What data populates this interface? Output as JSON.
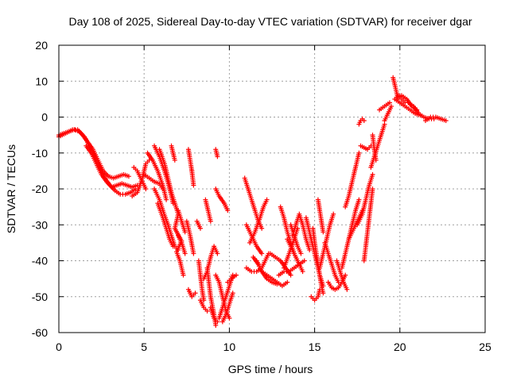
{
  "chart_data": {
    "type": "scatter",
    "title": "Day 108 of 2025, Sidereal Day-to-day VTEC variation (SDTVAR) for receiver dgar",
    "xlabel": "GPS time / hours",
    "ylabel": "SDTVAR / TECUs",
    "xlim": [
      0,
      25
    ],
    "ylim": [
      -60,
      20
    ],
    "xticks": [
      "0",
      "5",
      "10",
      "15",
      "20",
      "25"
    ],
    "yticks": [
      "-60",
      "-50",
      "-40",
      "-30",
      "-20",
      "-10",
      "0",
      "10",
      "20"
    ],
    "grid": true,
    "marker": "plus",
    "marker_color": "#ff0000",
    "tracks": [
      [
        [
          0.0,
          -5
        ],
        [
          0.3,
          -4.5
        ],
        [
          0.6,
          -4
        ],
        [
          0.9,
          -3.5
        ],
        [
          1.2,
          -4
        ],
        [
          1.5,
          -5.5
        ],
        [
          1.8,
          -8
        ],
        [
          2.1,
          -11
        ],
        [
          2.4,
          -14
        ],
        [
          2.7,
          -17
        ],
        [
          3.0,
          -19
        ],
        [
          3.3,
          -20.5
        ],
        [
          3.6,
          -21.5
        ],
        [
          3.9,
          -21.5
        ],
        [
          4.2,
          -21
        ],
        [
          4.5,
          -20
        ]
      ],
      [
        [
          0.0,
          -5.5
        ],
        [
          0.4,
          -4.5
        ],
        [
          0.8,
          -3.5
        ],
        [
          1.1,
          -3.5
        ],
        [
          1.4,
          -5
        ],
        [
          1.7,
          -7
        ],
        [
          2.0,
          -9
        ],
        [
          2.3,
          -12
        ],
        [
          2.6,
          -15
        ],
        [
          2.9,
          -16.5
        ],
        [
          3.2,
          -17
        ],
        [
          3.5,
          -16.5
        ],
        [
          3.8,
          -16
        ],
        [
          4.1,
          -16.5
        ]
      ],
      [
        [
          1.6,
          -8
        ],
        [
          1.9,
          -10
        ],
        [
          2.2,
          -13
        ],
        [
          2.5,
          -16
        ],
        [
          2.8,
          -18
        ],
        [
          3.1,
          -19.5
        ],
        [
          3.4,
          -19
        ],
        [
          3.7,
          -18.5
        ],
        [
          4.0,
          -19
        ],
        [
          4.3,
          -19.5
        ],
        [
          4.6,
          -19
        ]
      ],
      [
        [
          4.3,
          -22
        ],
        [
          4.6,
          -21
        ],
        [
          4.9,
          -17
        ],
        [
          5.1,
          -13
        ],
        [
          5.3,
          -12
        ]
      ],
      [
        [
          4.4,
          -14
        ],
        [
          4.6,
          -15
        ],
        [
          4.9,
          -18
        ],
        [
          5.1,
          -20
        ]
      ],
      [
        [
          5.0,
          -16
        ],
        [
          5.3,
          -17
        ],
        [
          5.6,
          -18
        ],
        [
          5.9,
          -18.5
        ],
        [
          6.1,
          -20
        ]
      ],
      [
        [
          5.2,
          -10
        ],
        [
          5.5,
          -12
        ],
        [
          5.8,
          -15
        ],
        [
          6.1,
          -19
        ],
        [
          6.3,
          -23
        ]
      ],
      [
        [
          5.6,
          -8
        ],
        [
          5.9,
          -11
        ],
        [
          6.2,
          -15
        ],
        [
          6.5,
          -20
        ],
        [
          6.7,
          -24
        ]
      ],
      [
        [
          5.6,
          -20
        ],
        [
          5.9,
          -23
        ],
        [
          6.1,
          -26
        ],
        [
          6.4,
          -30
        ],
        [
          6.6,
          -33
        ],
        [
          6.8,
          -36
        ],
        [
          7.0,
          -37
        ]
      ],
      [
        [
          5.9,
          -9
        ],
        [
          6.2,
          -13
        ],
        [
          6.4,
          -17
        ],
        [
          6.6,
          -21
        ],
        [
          6.8,
          -24
        ],
        [
          7.0,
          -27
        ]
      ],
      [
        [
          5.8,
          -24
        ],
        [
          6.1,
          -28
        ],
        [
          6.3,
          -31
        ],
        [
          6.5,
          -34
        ],
        [
          6.7,
          -36
        ]
      ],
      [
        [
          6.6,
          -8
        ],
        [
          6.7,
          -10
        ],
        [
          6.8,
          -12
        ]
      ],
      [
        [
          7.0,
          -26
        ],
        [
          7.2,
          -29
        ],
        [
          7.4,
          -32
        ]
      ],
      [
        [
          7.0,
          -33
        ],
        [
          7.2,
          -35
        ],
        [
          7.4,
          -38
        ]
      ],
      [
        [
          7.0,
          -27
        ],
        [
          6.8,
          -31
        ],
        [
          7.2,
          -34.5
        ],
        [
          6.9,
          -37.5
        ],
        [
          7.1,
          -40
        ],
        [
          7.3,
          -44
        ]
      ],
      [
        [
          7.5,
          -29
        ],
        [
          7.7,
          -33
        ],
        [
          7.9,
          -38
        ]
      ],
      [
        [
          7.6,
          -9
        ],
        [
          7.7,
          -12
        ],
        [
          7.8,
          -15
        ]
      ],
      [
        [
          7.8,
          -15
        ],
        [
          7.9,
          -19
        ]
      ],
      [
        [
          7.6,
          -48
        ],
        [
          7.8,
          -50
        ],
        [
          8.0,
          -49
        ]
      ],
      [
        [
          8.1,
          -29
        ],
        [
          8.3,
          -31
        ]
      ],
      [
        [
          8.2,
          -40
        ],
        [
          8.3,
          -44
        ],
        [
          8.4,
          -48
        ],
        [
          8.5,
          -51
        ]
      ],
      [
        [
          8.3,
          -51
        ],
        [
          8.5,
          -53
        ],
        [
          8.7,
          -54
        ]
      ],
      [
        [
          8.5,
          -45
        ],
        [
          8.7,
          -43
        ],
        [
          8.9,
          -39
        ],
        [
          9.1,
          -36
        ],
        [
          9.3,
          -38
        ]
      ],
      [
        [
          8.6,
          -23
        ],
        [
          8.7,
          -25
        ],
        [
          8.8,
          -27
        ],
        [
          8.9,
          -29
        ]
      ],
      [
        [
          8.7,
          -42
        ],
        [
          8.8,
          -46
        ],
        [
          8.9,
          -50
        ],
        [
          9.1,
          -55
        ],
        [
          9.2,
          -58
        ]
      ],
      [
        [
          8.9,
          -53
        ],
        [
          9.1,
          -56
        ],
        [
          9.3,
          -57
        ]
      ],
      [
        [
          9.2,
          -20
        ],
        [
          9.4,
          -22
        ],
        [
          9.7,
          -24
        ],
        [
          9.9,
          -26
        ]
      ],
      [
        [
          9.2,
          -9
        ],
        [
          9.3,
          -11
        ]
      ],
      [
        [
          9.2,
          -44
        ],
        [
          9.4,
          -46
        ],
        [
          9.6,
          -50
        ],
        [
          9.8,
          -54
        ],
        [
          10.0,
          -56
        ]
      ],
      [
        [
          9.4,
          -56
        ],
        [
          9.6,
          -53
        ],
        [
          9.8,
          -50
        ],
        [
          10.0,
          -47
        ],
        [
          10.2,
          -44
        ]
      ],
      [
        [
          9.6,
          -57
        ],
        [
          9.8,
          -55
        ],
        [
          10.0,
          -52
        ],
        [
          10.2,
          -49
        ]
      ],
      [
        [
          9.9,
          -46
        ],
        [
          10.1,
          -45
        ],
        [
          10.4,
          -44
        ]
      ],
      [
        [
          10.9,
          -17
        ],
        [
          11.1,
          -20
        ],
        [
          11.3,
          -23
        ],
        [
          11.5,
          -26
        ],
        [
          11.7,
          -29
        ],
        [
          11.9,
          -31
        ]
      ],
      [
        [
          11.0,
          -42
        ],
        [
          11.3,
          -43
        ],
        [
          11.6,
          -43
        ],
        [
          11.9,
          -42
        ],
        [
          12.1,
          -40
        ],
        [
          12.3,
          -38
        ]
      ],
      [
        [
          11.2,
          -35
        ],
        [
          11.5,
          -32
        ],
        [
          11.8,
          -28
        ],
        [
          12.0,
          -25
        ],
        [
          12.2,
          -23
        ]
      ],
      [
        [
          11.0,
          -30
        ],
        [
          11.3,
          -33
        ],
        [
          11.6,
          -36
        ],
        [
          11.9,
          -38
        ]
      ],
      [
        [
          11.4,
          -39
        ],
        [
          11.7,
          -41
        ],
        [
          11.9,
          -43
        ],
        [
          12.2,
          -45
        ],
        [
          12.5,
          -46
        ],
        [
          12.8,
          -46.5
        ]
      ],
      [
        [
          11.6,
          -40
        ],
        [
          11.9,
          -43
        ],
        [
          12.2,
          -44
        ],
        [
          12.5,
          -45
        ],
        [
          12.8,
          -46
        ],
        [
          13.1,
          -47
        ],
        [
          13.4,
          -46
        ]
      ],
      [
        [
          12.4,
          -38
        ],
        [
          12.7,
          -39
        ],
        [
          13.0,
          -40
        ],
        [
          13.3,
          -42
        ],
        [
          13.6,
          -44
        ]
      ],
      [
        [
          12.9,
          -44
        ],
        [
          13.2,
          -43
        ],
        [
          13.5,
          -43
        ],
        [
          13.8,
          -42
        ],
        [
          14.1,
          -41
        ],
        [
          14.4,
          -40
        ]
      ],
      [
        [
          13.0,
          -25
        ],
        [
          13.2,
          -28
        ],
        [
          13.4,
          -32
        ],
        [
          13.6,
          -35
        ],
        [
          13.8,
          -38
        ]
      ],
      [
        [
          13.2,
          -42
        ],
        [
          13.5,
          -38
        ],
        [
          13.8,
          -34
        ],
        [
          14.0,
          -31
        ]
      ],
      [
        [
          13.4,
          -34
        ],
        [
          13.7,
          -37
        ],
        [
          14.0,
          -40
        ],
        [
          14.3,
          -43
        ]
      ],
      [
        [
          13.6,
          -30
        ],
        [
          13.8,
          -33
        ],
        [
          14.0,
          -36
        ],
        [
          14.2,
          -38
        ]
      ],
      [
        [
          13.7,
          -33
        ],
        [
          13.9,
          -30
        ],
        [
          14.1,
          -27
        ],
        [
          14.3,
          -30
        ],
        [
          14.5,
          -34
        ],
        [
          14.7,
          -37
        ]
      ],
      [
        [
          14.5,
          -28
        ],
        [
          14.7,
          -32
        ],
        [
          14.9,
          -36
        ],
        [
          15.1,
          -40
        ],
        [
          15.3,
          -44
        ],
        [
          15.5,
          -47
        ]
      ],
      [
        [
          14.8,
          -50
        ],
        [
          15.0,
          -51
        ],
        [
          15.2,
          -50
        ],
        [
          15.3,
          -48
        ]
      ],
      [
        [
          14.9,
          -31
        ],
        [
          15.0,
          -35
        ],
        [
          15.1,
          -38
        ],
        [
          15.2,
          -41
        ],
        [
          15.3,
          -44
        ],
        [
          15.4,
          -47
        ],
        [
          15.5,
          -49
        ]
      ],
      [
        [
          15.2,
          -23
        ],
        [
          15.3,
          -26
        ],
        [
          15.4,
          -29
        ],
        [
          15.5,
          -32
        ]
      ],
      [
        [
          15.3,
          -42
        ],
        [
          15.5,
          -38
        ],
        [
          15.7,
          -34
        ],
        [
          15.9,
          -30
        ],
        [
          16.1,
          -27
        ]
      ],
      [
        [
          15.6,
          -35
        ],
        [
          15.8,
          -38
        ],
        [
          16.0,
          -41
        ],
        [
          16.2,
          -44
        ],
        [
          16.4,
          -46
        ]
      ],
      [
        [
          15.8,
          -46
        ],
        [
          16.0,
          -47.5
        ],
        [
          16.2,
          -48
        ],
        [
          16.4,
          -47.5
        ],
        [
          16.6,
          -46
        ],
        [
          16.8,
          -44
        ]
      ],
      [
        [
          16.3,
          -40
        ],
        [
          16.5,
          -43
        ],
        [
          16.7,
          -46
        ],
        [
          16.9,
          -48
        ]
      ],
      [
        [
          16.6,
          -42
        ],
        [
          16.8,
          -38
        ],
        [
          17.0,
          -34
        ],
        [
          17.2,
          -30
        ],
        [
          17.4,
          -26
        ],
        [
          17.6,
          -23
        ]
      ],
      [
        [
          16.8,
          -25
        ],
        [
          17.0,
          -22
        ],
        [
          17.2,
          -18
        ],
        [
          17.4,
          -14
        ],
        [
          17.6,
          -10
        ]
      ],
      [
        [
          17.0,
          -34
        ],
        [
          17.2,
          -32
        ],
        [
          17.4,
          -30
        ],
        [
          17.6,
          -28
        ],
        [
          17.8,
          -26
        ]
      ],
      [
        [
          17.5,
          -30
        ],
        [
          17.8,
          -27
        ],
        [
          18.0,
          -23
        ],
        [
          18.2,
          -19
        ],
        [
          18.4,
          -16
        ]
      ],
      [
        [
          17.6,
          -2
        ],
        [
          17.7,
          -1
        ],
        [
          17.8,
          -0.5
        ],
        [
          17.9,
          -1
        ]
      ],
      [
        [
          17.9,
          -40
        ],
        [
          18.0,
          -36
        ],
        [
          18.1,
          -32
        ],
        [
          18.2,
          -28
        ],
        [
          18.3,
          -24
        ],
        [
          18.4,
          -20
        ]
      ],
      [
        [
          17.7,
          -8
        ],
        [
          17.9,
          -8.5
        ],
        [
          18.1,
          -9
        ],
        [
          18.3,
          -8
        ]
      ],
      [
        [
          18.3,
          -14
        ],
        [
          18.5,
          -11
        ],
        [
          18.7,
          -8
        ],
        [
          18.9,
          -5
        ],
        [
          19.1,
          -2
        ]
      ],
      [
        [
          18.4,
          -5
        ],
        [
          18.5,
          -9
        ],
        [
          18.6,
          -12
        ]
      ],
      [
        [
          18.8,
          2
        ],
        [
          19.1,
          3
        ],
        [
          19.4,
          4
        ]
      ],
      [
        [
          19.1,
          -1
        ],
        [
          19.3,
          1
        ],
        [
          19.5,
          3
        ]
      ],
      [
        [
          19.6,
          11
        ],
        [
          19.7,
          9
        ],
        [
          19.8,
          7
        ],
        [
          19.9,
          5
        ]
      ],
      [
        [
          19.9,
          6
        ],
        [
          20.1,
          5
        ],
        [
          20.3,
          4
        ]
      ],
      [
        [
          19.7,
          5
        ],
        [
          20.0,
          4
        ],
        [
          20.3,
          3
        ],
        [
          20.6,
          2
        ],
        [
          20.9,
          1
        ],
        [
          21.2,
          0.5
        ]
      ],
      [
        [
          19.8,
          5.5
        ],
        [
          20.1,
          6
        ],
        [
          20.4,
          5
        ],
        [
          20.7,
          3
        ],
        [
          21.0,
          2
        ]
      ],
      [
        [
          20.5,
          4
        ],
        [
          20.8,
          3
        ],
        [
          21.1,
          1
        ],
        [
          21.4,
          0
        ],
        [
          21.7,
          -0.5
        ],
        [
          22.0,
          -0.5
        ]
      ],
      [
        [
          21.5,
          -1
        ],
        [
          21.8,
          0
        ],
        [
          22.1,
          0
        ],
        [
          22.4,
          -0.5
        ],
        [
          22.7,
          -1
        ]
      ]
    ]
  }
}
